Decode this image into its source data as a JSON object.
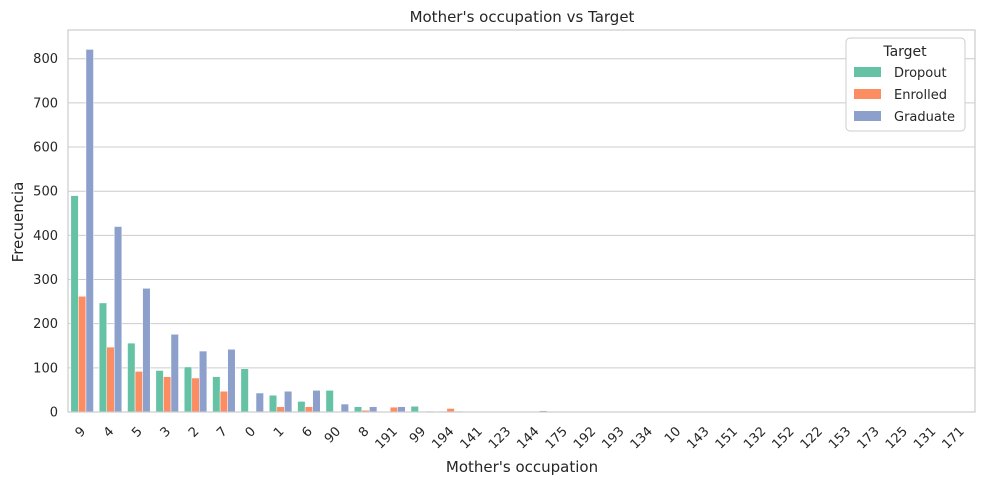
{
  "chart_data": {
    "type": "bar",
    "title": "Mother's occupation vs Target",
    "xlabel": "Mother's occupation",
    "ylabel": "Frecuencia",
    "ylim": [
      0,
      865
    ],
    "yticks": [
      0,
      100,
      200,
      300,
      400,
      500,
      600,
      700,
      800
    ],
    "grid": "horizontal",
    "legend": {
      "title": "Target",
      "placement": "top-right"
    },
    "categories": [
      "9",
      "4",
      "5",
      "3",
      "2",
      "7",
      "0",
      "1",
      "6",
      "90",
      "8",
      "191",
      "99",
      "194",
      "141",
      "123",
      "144",
      "175",
      "192",
      "193",
      "134",
      "10",
      "143",
      "151",
      "132",
      "152",
      "122",
      "153",
      "173",
      "125",
      "131",
      "171"
    ],
    "series": [
      {
        "name": "Dropout",
        "color": "#66c2a5",
        "values": [
          490,
          247,
          156,
          94,
          102,
          80,
          98,
          38,
          24,
          49,
          12,
          0,
          13,
          2,
          1,
          1,
          1,
          1,
          1,
          1,
          1,
          1,
          0,
          0,
          0,
          0,
          0,
          0,
          0,
          0,
          0,
          0
        ]
      },
      {
        "name": "Enrolled",
        "color": "#fc8d62",
        "values": [
          262,
          147,
          92,
          80,
          77,
          47,
          0,
          12,
          12,
          0,
          4,
          11,
          0,
          8,
          1,
          1,
          0,
          0,
          0,
          0,
          0,
          0,
          0,
          0,
          0,
          0,
          0,
          0,
          0,
          0,
          0,
          0
        ]
      },
      {
        "name": "Graduate",
        "color": "#8da0cb",
        "values": [
          821,
          420,
          280,
          176,
          138,
          142,
          43,
          47,
          49,
          18,
          12,
          12,
          2,
          2,
          1,
          1,
          3,
          1,
          1,
          1,
          1,
          1,
          1,
          1,
          1,
          1,
          1,
          1,
          1,
          1,
          1,
          1
        ]
      }
    ]
  }
}
